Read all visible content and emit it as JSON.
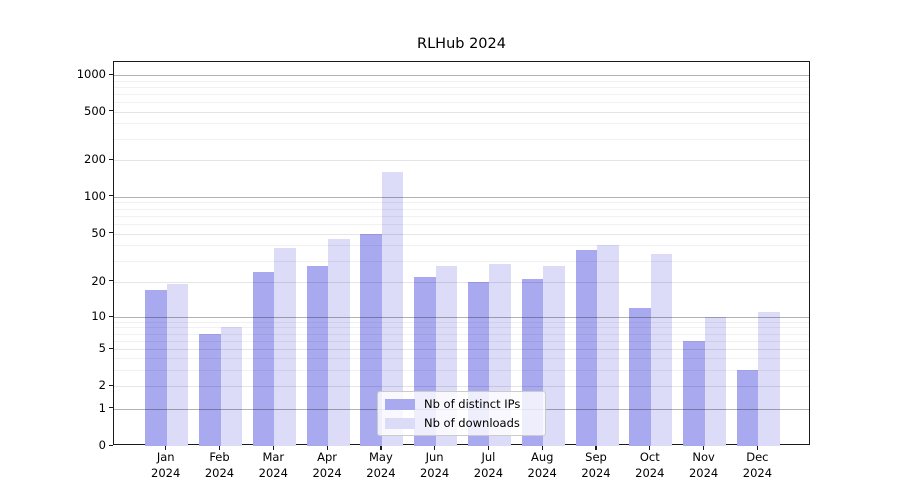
{
  "title": "RLHub 2024",
  "chart_data": {
    "type": "bar",
    "title": "RLHub 2024",
    "categories": [
      "Jan 2024",
      "Feb 2024",
      "Mar 2024",
      "Apr 2024",
      "May 2024",
      "Jun 2024",
      "Jul 2024",
      "Aug 2024",
      "Sep 2024",
      "Oct 2024",
      "Nov 2024",
      "Dec 2024"
    ],
    "month_labels": [
      "Jan",
      "Feb",
      "Mar",
      "Apr",
      "May",
      "Jun",
      "Jul",
      "Aug",
      "Sep",
      "Oct",
      "Nov",
      "Dec"
    ],
    "year_label": "2024",
    "series": [
      {
        "name": "Nb of distinct IPs",
        "color": "#a9a9f0",
        "values": [
          17,
          7,
          24,
          27,
          50,
          22,
          20,
          21,
          37,
          12,
          6,
          3
        ]
      },
      {
        "name": "Nb of downloads",
        "color": "#dcdcf8",
        "values": [
          19,
          8,
          38,
          45,
          160,
          27,
          28,
          27,
          40,
          34,
          10,
          11
        ]
      }
    ],
    "y_axis": {
      "scale": "symlog",
      "ticks": [
        1000,
        500,
        200,
        100,
        50,
        20,
        10,
        5,
        2,
        1,
        0
      ],
      "major_gridline_values": [
        1000,
        100,
        10,
        1
      ],
      "range_top": 1234
    },
    "xlabel": "",
    "ylabel": "",
    "grid": true,
    "legend_position": "lower center"
  }
}
